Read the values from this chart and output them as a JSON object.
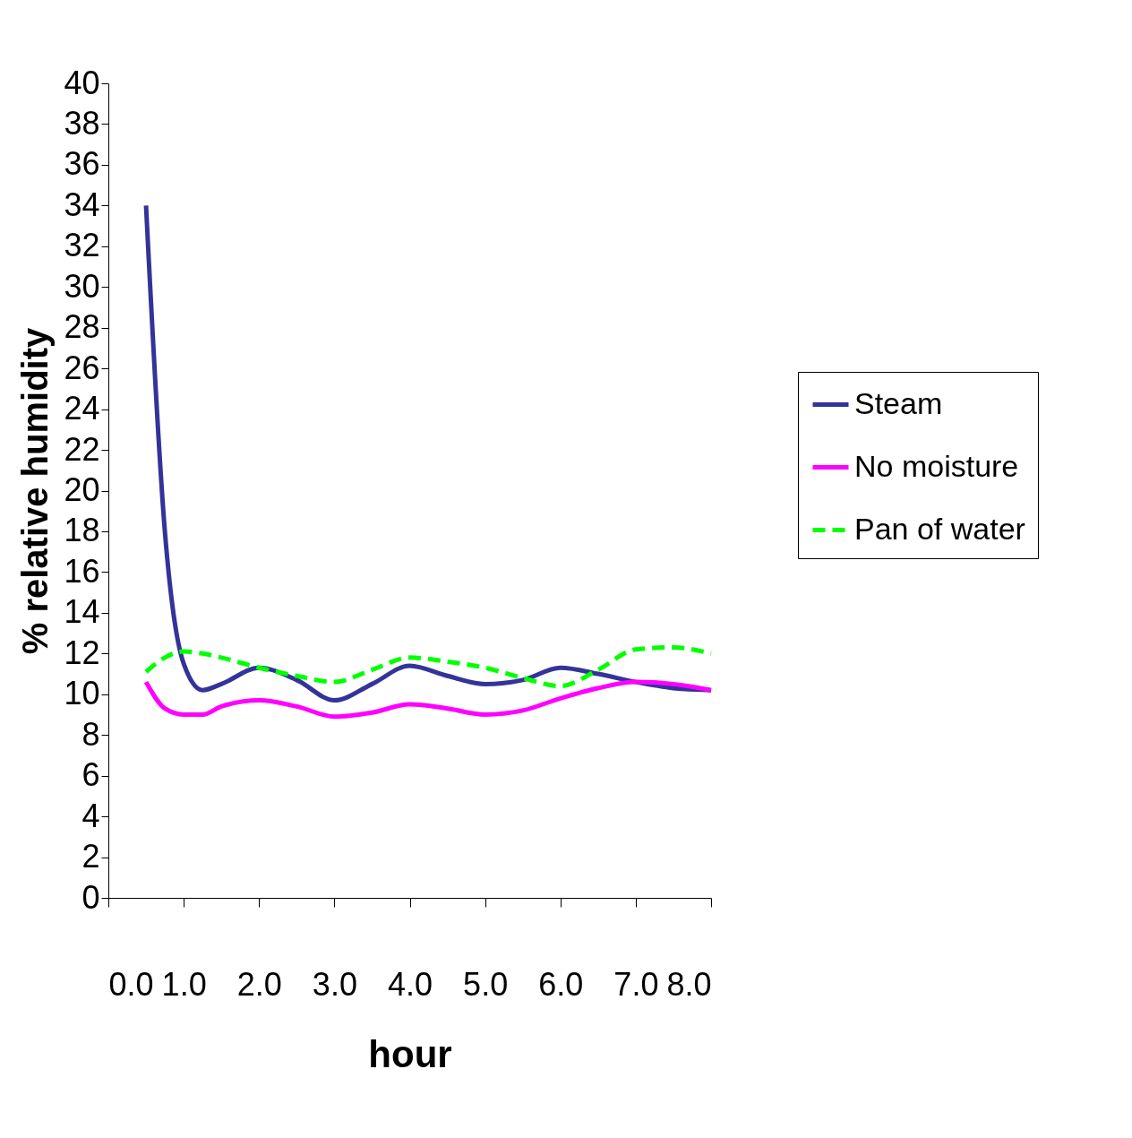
{
  "chart_data": {
    "type": "line",
    "xlabel": "hour",
    "ylabel": "% relative humidity",
    "xlim": [
      0,
      8
    ],
    "ylim": [
      0,
      40
    ],
    "xticks": [
      {
        "value": 0,
        "label": "0.0"
      },
      {
        "value": 1,
        "label": "1.0"
      },
      {
        "value": 2,
        "label": "2.0"
      },
      {
        "value": 3,
        "label": "3.0"
      },
      {
        "value": 4,
        "label": "4.0"
      },
      {
        "value": 5,
        "label": "5.0"
      },
      {
        "value": 6,
        "label": "6.0"
      },
      {
        "value": 7,
        "label": "7.0"
      },
      {
        "value": 8,
        "label": "8.0"
      }
    ],
    "yticks": [
      0,
      2,
      4,
      6,
      8,
      10,
      12,
      14,
      16,
      18,
      20,
      22,
      24,
      26,
      28,
      30,
      32,
      34,
      36,
      38,
      40
    ],
    "x": [
      0.5,
      0.75,
      1.0,
      1.25,
      1.5,
      2.0,
      2.5,
      3.0,
      3.5,
      4.0,
      4.5,
      5.0,
      5.5,
      6.0,
      6.5,
      7.0,
      7.5,
      8.0
    ],
    "series": [
      {
        "name": "Steam",
        "color": "#333399",
        "line_style": "solid",
        "values": [
          34,
          18,
          11.5,
          10.2,
          10.5,
          11.3,
          10.7,
          9.7,
          10.5,
          11.4,
          10.9,
          10.5,
          10.7,
          11.3,
          11.0,
          10.6,
          10.3,
          10.2
        ]
      },
      {
        "name": "No moisture",
        "color": "#ff00ff",
        "line_style": "solid",
        "values": [
          10.6,
          9.3,
          9.0,
          9.0,
          9.4,
          9.7,
          9.4,
          8.9,
          9.1,
          9.5,
          9.3,
          9.0,
          9.2,
          9.8,
          10.3,
          10.6,
          10.5,
          10.2
        ]
      },
      {
        "name": "Pan of water",
        "color": "#00ff00",
        "line_style": "dashed",
        "values": [
          11.1,
          11.8,
          12.1,
          12.0,
          11.8,
          11.3,
          10.9,
          10.6,
          11.2,
          11.8,
          11.6,
          11.3,
          10.8,
          10.4,
          11.2,
          12.2,
          12.3,
          12.0
        ]
      }
    ],
    "legend": "right",
    "grid": false,
    "marker": "none"
  }
}
